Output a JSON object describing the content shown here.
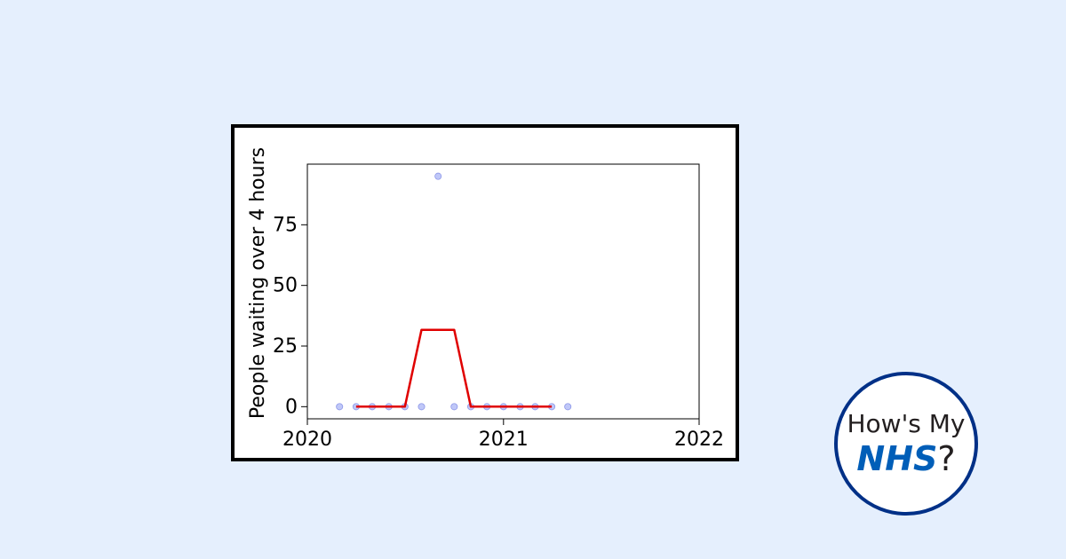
{
  "chart_data": {
    "type": "line",
    "ylabel": "People waiting over 4 hours",
    "xlabel": "",
    "xlim": [
      "2020-01-01",
      "2022-01-01"
    ],
    "ylim": [
      -5,
      100
    ],
    "x_ticks": [
      "2020",
      "2021",
      "2022"
    ],
    "y_ticks": [
      0,
      25,
      50,
      75
    ],
    "grid": false,
    "series": [
      {
        "kind": "scatter",
        "color": "#aab4f5",
        "points": [
          {
            "x": "2020-03-01",
            "y": 0
          },
          {
            "x": "2020-04-01",
            "y": 0
          },
          {
            "x": "2020-05-01",
            "y": 0
          },
          {
            "x": "2020-06-01",
            "y": 0
          },
          {
            "x": "2020-07-01",
            "y": 0
          },
          {
            "x": "2020-08-01",
            "y": 0
          },
          {
            "x": "2020-09-01",
            "y": 95
          },
          {
            "x": "2020-10-01",
            "y": 0
          },
          {
            "x": "2020-11-01",
            "y": 0
          },
          {
            "x": "2020-12-01",
            "y": 0
          },
          {
            "x": "2021-01-01",
            "y": 0
          },
          {
            "x": "2021-02-01",
            "y": 0
          },
          {
            "x": "2021-03-01",
            "y": 0
          },
          {
            "x": "2021-04-01",
            "y": 0
          },
          {
            "x": "2021-05-01",
            "y": 0
          }
        ]
      },
      {
        "kind": "line",
        "color": "#e00000",
        "points": [
          {
            "x": "2020-04-01",
            "y": 0
          },
          {
            "x": "2020-05-01",
            "y": 0
          },
          {
            "x": "2020-06-01",
            "y": 0
          },
          {
            "x": "2020-07-01",
            "y": 0
          },
          {
            "x": "2020-08-01",
            "y": 31.7
          },
          {
            "x": "2020-09-01",
            "y": 31.7
          },
          {
            "x": "2020-10-01",
            "y": 31.7
          },
          {
            "x": "2020-11-01",
            "y": 0
          },
          {
            "x": "2020-12-01",
            "y": 0
          },
          {
            "x": "2021-01-01",
            "y": 0
          },
          {
            "x": "2021-02-01",
            "y": 0
          },
          {
            "x": "2021-03-01",
            "y": 0
          },
          {
            "x": "2021-04-01",
            "y": 0
          }
        ]
      }
    ]
  },
  "logo": {
    "line1": "How's My",
    "brand": "NHS",
    "suffix": "?"
  },
  "colors": {
    "background": "#e5effd",
    "nhs_blue": "#005eb8",
    "logo_border": "#003087"
  }
}
